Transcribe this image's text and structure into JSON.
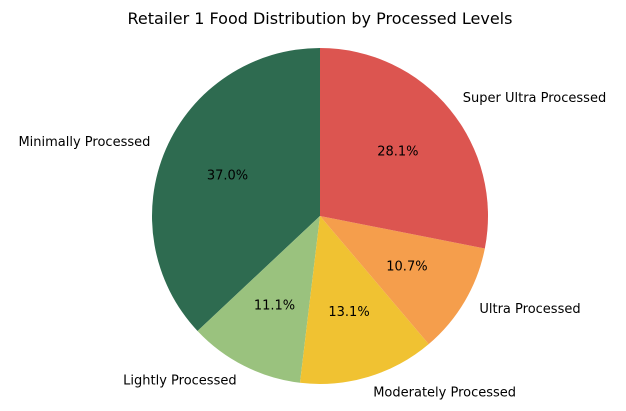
{
  "chart_data": {
    "type": "pie",
    "title": "Retailer 1 Food Distribution by Processed Levels",
    "categories": [
      "Minimally Processed",
      "Lightly Processed",
      "Moderately Processed",
      "Ultra Processed",
      "Super Ultra Processed"
    ],
    "values": [
      37.0,
      11.1,
      13.1,
      10.7,
      28.1
    ],
    "percent_labels": [
      "37.0%",
      "11.1%",
      "13.1%",
      "10.7%",
      "28.1%"
    ],
    "colors": [
      "#2e6b50",
      "#9ac27e",
      "#f0c232",
      "#f59e4c",
      "#dc5550"
    ],
    "start_angle_deg": 90,
    "direction": "counterclockwise",
    "legend": "none"
  }
}
